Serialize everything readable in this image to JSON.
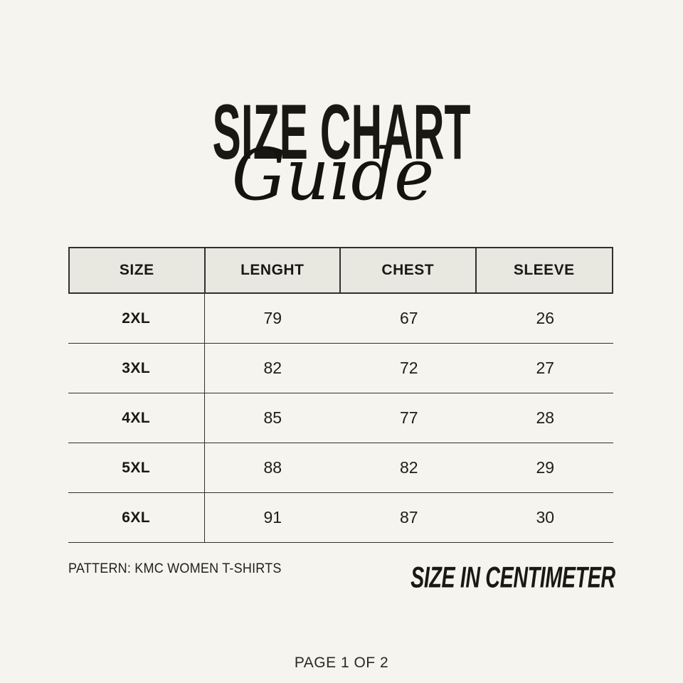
{
  "page": {
    "background_color": "#f5f4ef",
    "title": "SIZE CHART",
    "subtitle_script": "Guide",
    "footer_left": "PATTERN: KMC WOMEN T-SHIRTS",
    "footer_right": "SIZE IN CENTIMETER",
    "page_indicator": "PAGE 1 OF 2"
  },
  "colors": {
    "table_header_background": "#e9e8e0",
    "table_line": "#32302b",
    "text": "#1b1a16"
  },
  "chart_data": {
    "type": "table",
    "unit": "centimeter",
    "columns": [
      "SIZE",
      "LENGHT",
      "CHEST",
      "SLEEVE"
    ],
    "rows": [
      {
        "size": "2XL",
        "lenght": "79",
        "chest": "67",
        "sleeve": "26"
      },
      {
        "size": "3XL",
        "lenght": "82",
        "chest": "72",
        "sleeve": "27"
      },
      {
        "size": "4XL",
        "lenght": "85",
        "chest": "77",
        "sleeve": "28"
      },
      {
        "size": "5XL",
        "lenght": "88",
        "chest": "82",
        "sleeve": "29"
      },
      {
        "size": "6XL",
        "lenght": "91",
        "chest": "87",
        "sleeve": "30"
      }
    ]
  }
}
